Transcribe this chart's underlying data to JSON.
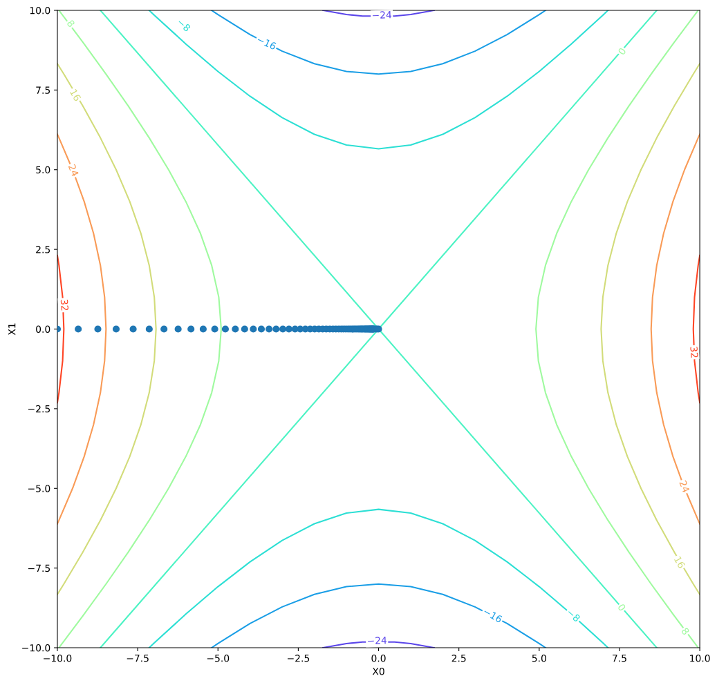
{
  "chart_data": {
    "type": "line",
    "xlabel": "X0",
    "ylabel": "X1",
    "grid": false,
    "legend": false,
    "line_style": "solid",
    "marker": "none",
    "xlim": [
      -10,
      10
    ],
    "ylim": [
      -10,
      10
    ],
    "xticks": [
      {
        "value": -10,
        "label": "−10.0"
      },
      {
        "value": -7.5,
        "label": "−7.5"
      },
      {
        "value": -5,
        "label": "−5.0"
      },
      {
        "value": -2.5,
        "label": "−2.5"
      },
      {
        "value": 0,
        "label": "0.0"
      },
      {
        "value": 2.5,
        "label": "2.5"
      },
      {
        "value": 5,
        "label": "5.0"
      },
      {
        "value": 7.5,
        "label": "7.5"
      },
      {
        "value": 10,
        "label": "10.0"
      }
    ],
    "yticks": [
      {
        "value": -10,
        "label": "−10.0"
      },
      {
        "value": -7.5,
        "label": "−7.5"
      },
      {
        "value": -5,
        "label": "−5.0"
      },
      {
        "value": -2.5,
        "label": "−2.5"
      },
      {
        "value": 0,
        "label": "0.0"
      },
      {
        "value": 2.5,
        "label": "2.5"
      },
      {
        "value": 5,
        "label": "5.0"
      },
      {
        "value": 7.5,
        "label": "7.5"
      },
      {
        "value": 10,
        "label": "10.0"
      }
    ],
    "series": [
      {
        "color": "#5b46ea",
        "x": [
          -1.73,
          -1,
          -0.5,
          0.5,
          1,
          1.73
        ],
        "values": [
          10,
          9.87,
          9.82,
          9.82,
          9.87,
          10
        ]
      },
      {
        "color": "#5b46ea",
        "x": [
          -1.73,
          -1,
          -0.5,
          0.5,
          1,
          1.73
        ],
        "values": [
          -10,
          -9.87,
          -9.82,
          -9.82,
          -9.87,
          -10
        ]
      },
      {
        "color": "#1a9ee6",
        "x": [
          -5.196,
          -5,
          -4,
          -3,
          -2,
          -1,
          0,
          1,
          2,
          3,
          4,
          5,
          5.196
        ],
        "values": [
          10,
          9.866,
          9.238,
          8.718,
          8.327,
          8.083,
          8,
          8.083,
          8.327,
          8.718,
          9.238,
          9.866,
          10
        ]
      },
      {
        "color": "#1a9ee6",
        "x": [
          -5.196,
          -5,
          -4,
          -3,
          -2,
          -1,
          0,
          1,
          2,
          3,
          4,
          5,
          5.196
        ],
        "values": [
          -10,
          -9.866,
          -9.238,
          -8.718,
          -8.327,
          -8.083,
          -8,
          -8.083,
          -8.327,
          -8.718,
          -9.238,
          -9.866,
          -10
        ]
      },
      {
        "color": "#2cdfd4",
        "x": [
          -7.141,
          -7,
          -6,
          -5,
          -4,
          -3,
          -2,
          -1,
          0,
          1,
          2,
          3,
          4,
          5,
          6,
          7,
          7.141
        ],
        "values": [
          10,
          9.866,
          8.944,
          8.083,
          7.303,
          6.633,
          6.11,
          5.774,
          5.657,
          5.774,
          6.11,
          6.633,
          7.303,
          8.083,
          8.944,
          9.866,
          10
        ]
      },
      {
        "color": "#2cdfd4",
        "x": [
          -7.141,
          -7,
          -6,
          -5,
          -4,
          -3,
          -2,
          -1,
          0,
          1,
          2,
          3,
          4,
          5,
          6,
          7,
          7.141
        ],
        "values": [
          -10,
          -9.866,
          -8.944,
          -8.083,
          -7.303,
          -6.633,
          -6.11,
          -5.774,
          -5.657,
          -5.774,
          -6.11,
          -6.633,
          -7.303,
          -8.083,
          -8.944,
          -9.866,
          -10
        ]
      },
      {
        "color": "#4df3c4",
        "x": [
          -8.66,
          0,
          8.66
        ],
        "values": [
          10,
          0,
          -10
        ]
      },
      {
        "color": "#4df3c4",
        "x": [
          -8.66,
          0,
          8.66
        ],
        "values": [
          -10,
          0,
          10
        ]
      },
      {
        "color": "#9ffa9f",
        "x": [
          -9.95,
          -9.206,
          -8.485,
          -7.794,
          -7.141,
          -6.538,
          -6,
          -5.545,
          -5.196,
          -4.975,
          -4.899,
          -4.975,
          -5.196,
          -5.545,
          -6,
          -6.538,
          -7.141,
          -7.794,
          -8.485,
          -9.206,
          -9.95
        ],
        "values": [
          10,
          9,
          8,
          7,
          6,
          5,
          4,
          3,
          2,
          1,
          0,
          -1,
          -2,
          -3,
          -4,
          -5,
          -6,
          -7,
          -8,
          -9,
          -10
        ]
      },
      {
        "color": "#9ffa9f",
        "x": [
          9.95,
          9.206,
          8.485,
          7.794,
          7.141,
          6.538,
          6,
          5.545,
          5.196,
          4.975,
          4.899,
          4.975,
          5.196,
          5.545,
          6,
          6.538,
          7.141,
          7.794,
          8.485,
          9.206,
          9.95
        ],
        "values": [
          10,
          9,
          8,
          7,
          6,
          5,
          4,
          3,
          2,
          1,
          0,
          -1,
          -2,
          -3,
          -4,
          -5,
          -6,
          -7,
          -8,
          -9,
          -10
        ]
      },
      {
        "color": "#d2dc7a",
        "x": [
          -10,
          -9.798,
          -9.206,
          -8.66,
          -8.17,
          -7.746,
          -7.399,
          -7.141,
          -6.982,
          -6.928,
          -6.982,
          -7.141,
          -7.399,
          -7.746,
          -8.17,
          -8.66,
          -9.206,
          -9.798,
          -10
        ],
        "values": [
          8.327,
          8,
          7,
          6,
          5,
          4,
          3,
          2,
          1,
          0,
          -1,
          -2,
          -3,
          -4,
          -5,
          -6,
          -7,
          -8,
          -8.327
        ]
      },
      {
        "color": "#d2dc7a",
        "x": [
          10,
          9.798,
          9.206,
          8.66,
          8.17,
          7.746,
          7.399,
          7.141,
          6.982,
          6.928,
          6.982,
          7.141,
          7.399,
          7.746,
          8.17,
          8.66,
          9.206,
          9.798,
          10
        ],
        "values": [
          8.327,
          8,
          7,
          6,
          5,
          4,
          3,
          2,
          1,
          0,
          -1,
          -2,
          -3,
          -4,
          -5,
          -6,
          -7,
          -8,
          -8.327
        ]
      },
      {
        "color": "#f99b57",
        "x": [
          -10,
          -9.95,
          -9.526,
          -9.165,
          -8.874,
          -8.66,
          -8.529,
          -8.485,
          -8.529,
          -8.66,
          -8.874,
          -9.165,
          -9.526,
          -9.95,
          -10
        ],
        "values": [
          6.11,
          6,
          5,
          4,
          3,
          2,
          1,
          0,
          -1,
          -2,
          -3,
          -4,
          -5,
          -6,
          -6.11
        ]
      },
      {
        "color": "#f99b57",
        "x": [
          10,
          9.95,
          9.526,
          9.165,
          8.874,
          8.66,
          8.529,
          8.485,
          8.529,
          8.66,
          8.874,
          9.165,
          9.526,
          9.95,
          10
        ],
        "values": [
          6.11,
          6,
          5,
          4,
          3,
          2,
          1,
          0,
          -1,
          -2,
          -3,
          -4,
          -5,
          -6,
          -6.11
        ]
      },
      {
        "color": "#ff4525",
        "x": [
          -10,
          -9.95,
          -9.836,
          -9.798,
          -9.836,
          -9.95,
          -10
        ],
        "values": [
          2.309,
          2,
          1,
          0,
          -1,
          -2,
          -2.309
        ]
      },
      {
        "color": "#ff4525",
        "x": [
          10,
          9.95,
          9.836,
          9.798,
          9.836,
          9.95,
          10
        ],
        "values": [
          2.309,
          2,
          1,
          0,
          -1,
          -2,
          -2.309
        ]
      },
      {
        "type": "scatter",
        "marker": "circle",
        "color": "#1f77b4",
        "x": [
          -10,
          -9.35,
          -8.74,
          -8.17,
          -7.64,
          -7.14,
          -6.68,
          -6.24,
          -5.84,
          -5.46,
          -5.1,
          -4.77,
          -4.46,
          -4.17,
          -3.9,
          -3.65,
          -3.41,
          -3.19,
          -2.98,
          -2.79,
          -2.6,
          -2.44,
          -2.28,
          -2.13,
          -1.99,
          -1.86,
          -1.74,
          -1.63,
          -1.52,
          -1.42,
          -1.33,
          -1.24,
          -1.16,
          -1.09,
          -1.02,
          -0.95,
          -0.89,
          -0.83,
          -0.78,
          -0.73,
          -0.68,
          -0.63,
          -0.59,
          -0.55,
          -0.52,
          -0.49,
          -0.45,
          -0.42,
          -0.4,
          -0.37,
          -0.35,
          -0.32,
          -0.3,
          -0.28,
          -0.26,
          -0.25,
          -0.23,
          -0.21,
          -0.2,
          -0.19,
          -0.17,
          -0.16,
          -0.15,
          -0.1,
          -0.05,
          0
        ],
        "values": [
          0,
          0,
          0,
          0,
          0,
          0,
          0,
          0,
          0,
          0,
          0,
          0,
          0,
          0,
          0,
          0,
          0,
          0,
          0,
          0,
          0,
          0,
          0,
          0,
          0,
          0,
          0,
          0,
          0,
          0,
          0,
          0,
          0,
          0,
          0,
          0,
          0,
          0,
          0,
          0,
          0,
          0,
          0,
          0,
          0,
          0,
          0,
          0,
          0,
          0,
          0,
          0,
          0,
          0,
          0,
          0,
          0,
          0,
          0,
          0,
          0,
          0,
          0,
          0,
          0,
          0
        ]
      }
    ],
    "annotations": [
      {
        "text": "−24",
        "x": 0.1,
        "y": 9.83
      },
      {
        "text": "−16",
        "x": -3.5,
        "y": 8.96
      },
      {
        "text": "−8",
        "x": -6.08,
        "y": 9.52
      },
      {
        "text": "8",
        "x": -9.6,
        "y": 9.57
      },
      {
        "text": "16",
        "x": -9.46,
        "y": 7.33
      },
      {
        "text": "24",
        "x": -9.52,
        "y": 4.97
      },
      {
        "text": "32",
        "x": -9.8,
        "y": 0.75
      },
      {
        "text": "0",
        "x": 7.6,
        "y": 8.7
      },
      {
        "text": "32",
        "x": 9.8,
        "y": -0.73
      },
      {
        "text": "24",
        "x": 9.5,
        "y": -4.95
      },
      {
        "text": "16",
        "x": 9.35,
        "y": -7.33
      },
      {
        "text": "8",
        "x": 9.53,
        "y": -9.5
      },
      {
        "text": "0",
        "x": 7.55,
        "y": -8.75
      },
      {
        "text": "−8",
        "x": 6.05,
        "y": -9.0
      },
      {
        "text": "−16",
        "x": 3.54,
        "y": -9.0
      },
      {
        "text": "−24",
        "x": -0.05,
        "y": -9.8
      }
    ]
  }
}
